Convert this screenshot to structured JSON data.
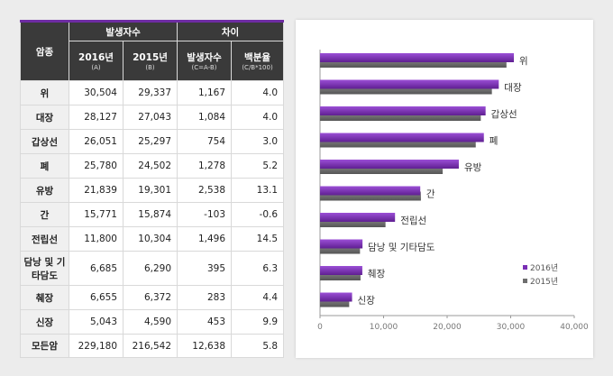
{
  "table": {
    "header": {
      "col_type": "암종",
      "group_incidence": "발생자수",
      "group_diff": "차이",
      "col_2016": "2016년",
      "col_2016_sub": "(A)",
      "col_2015": "2015년",
      "col_2015_sub": "(B)",
      "col_diff": "발생자수",
      "col_diff_sub": "(C=A-B)",
      "col_pct": "백분율",
      "col_pct_sub": "(C/B*100)"
    },
    "rows": [
      {
        "name": "위",
        "y2016": "30,504",
        "y2015": "29,337",
        "diff": "1,167",
        "pct": "4.0"
      },
      {
        "name": "대장",
        "y2016": "28,127",
        "y2015": "27,043",
        "diff": "1,084",
        "pct": "4.0"
      },
      {
        "name": "갑상선",
        "y2016": "26,051",
        "y2015": "25,297",
        "diff": "754",
        "pct": "3.0"
      },
      {
        "name": "폐",
        "y2016": "25,780",
        "y2015": "24,502",
        "diff": "1,278",
        "pct": "5.2"
      },
      {
        "name": "유방",
        "y2016": "21,839",
        "y2015": "19,301",
        "diff": "2,538",
        "pct": "13.1"
      },
      {
        "name": "간",
        "y2016": "15,771",
        "y2015": "15,874",
        "diff": "-103",
        "pct": "-0.6"
      },
      {
        "name": "전립선",
        "y2016": "11,800",
        "y2015": "10,304",
        "diff": "1,496",
        "pct": "14.5"
      },
      {
        "name": "담낭 및 기타담도",
        "y2016": "6,685",
        "y2015": "6,290",
        "diff": "395",
        "pct": "6.3"
      },
      {
        "name": "췌장",
        "y2016": "6,655",
        "y2015": "6,372",
        "diff": "283",
        "pct": "4.4"
      },
      {
        "name": "신장",
        "y2016": "5,043",
        "y2015": "4,590",
        "diff": "453",
        "pct": "9.9"
      },
      {
        "name": "모든암",
        "y2016": "229,180",
        "y2015": "216,542",
        "diff": "12,638",
        "pct": "5.8"
      }
    ]
  },
  "chart_data": {
    "type": "bar",
    "orientation": "horizontal",
    "categories": [
      "위",
      "대장",
      "갑상선",
      "폐",
      "유방",
      "간",
      "전립선",
      "담낭 및 기타담도",
      "췌장",
      "신장"
    ],
    "series": [
      {
        "name": "2016년",
        "values": [
          30504,
          28127,
          26051,
          25780,
          21839,
          15771,
          11800,
          6685,
          6655,
          5043
        ]
      },
      {
        "name": "2015년",
        "values": [
          29337,
          27043,
          25297,
          24502,
          19301,
          15874,
          10304,
          6290,
          6372,
          4590
        ]
      }
    ],
    "xlim": [
      0,
      40000
    ],
    "xticks": [
      0,
      10000,
      20000,
      30000,
      40000
    ],
    "xtick_labels": [
      "0",
      "10,000",
      "20,000",
      "30,000",
      "40,000"
    ],
    "legend_position": "bottom-right",
    "colors": {
      "2016년": "#7a2fb5",
      "2015년": "#6e6e6e"
    },
    "grid": false
  }
}
